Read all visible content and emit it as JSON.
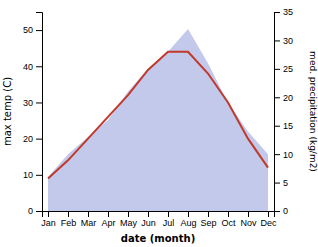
{
  "chart_data": {
    "type": "line",
    "categories": [
      "Jan",
      "Feb",
      "Mar",
      "Apr",
      "May",
      "Jun",
      "Jul",
      "Aug",
      "Sep",
      "Oct",
      "Nov",
      "Dec"
    ],
    "xlabel": "date (month)",
    "ylabel": "max temp (C)",
    "y2label": "med. precipitation (kg/m2)",
    "ylim": [
      0,
      55
    ],
    "yticks": [
      0,
      10,
      20,
      30,
      40,
      50
    ],
    "y2lim": [
      0,
      35
    ],
    "y2ticks": [
      0,
      5,
      10,
      15,
      20,
      25,
      30,
      35
    ],
    "series": [
      {
        "type": "area",
        "axis": "y2",
        "color": "#b8c0e8",
        "values": [
          6,
          10,
          13,
          16,
          21,
          25,
          28,
          32,
          26,
          19,
          14,
          10
        ]
      },
      {
        "type": "line",
        "color": "#c0392b",
        "values": [
          9,
          14,
          20,
          26,
          32,
          39,
          44,
          44,
          38,
          30,
          20,
          12
        ]
      }
    ]
  }
}
